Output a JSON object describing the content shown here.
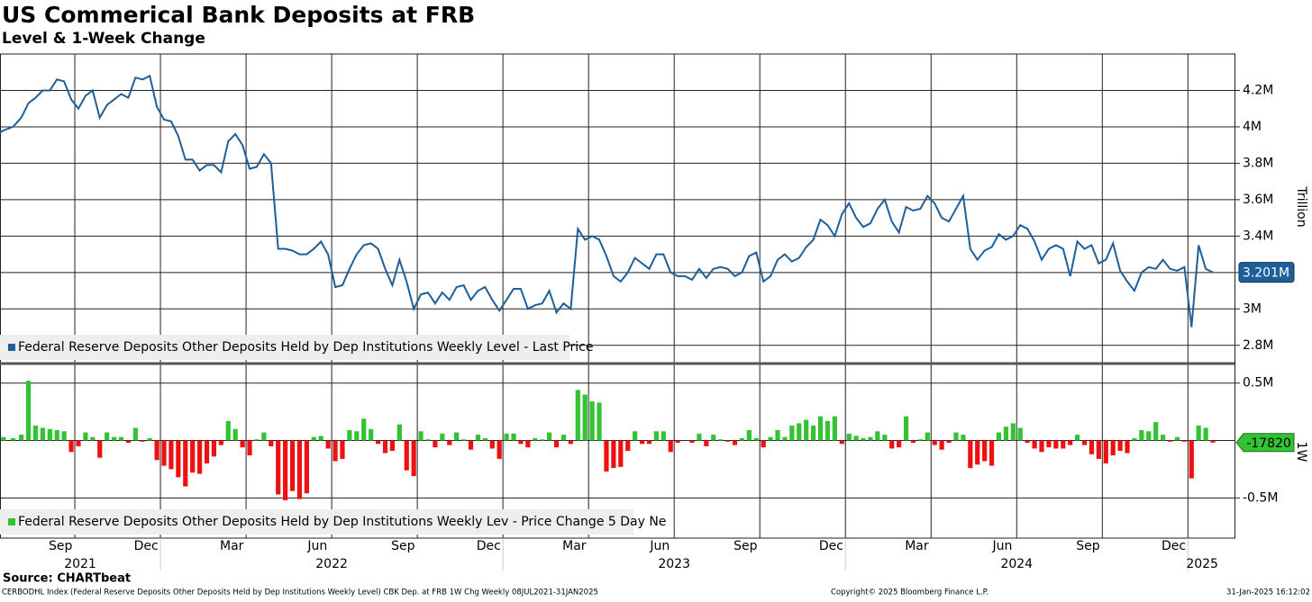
{
  "chart_data": {
    "type": "line",
    "title": "US Commerical Bank Deposits at FRB",
    "subtitle": "Level & 1-Week Change",
    "ylabel": "Trillion",
    "y2label": "1W",
    "source": "Source: CHARTbeat",
    "footer": "CERBODHL Index (Federal Reserve Deposits Other Deposits Held by Dep Institutions Weekly Level) CBK Dep. at FRB 1W Chg  Weekly 08JUL2021-31JAN2025",
    "copyright": "Copyright© 2025 Bloomberg Finance L.P.",
    "timestamp": "31-Jan-2025 16:12:02",
    "xlim": [
      "2021-07",
      "2025-01"
    ],
    "xticks": [
      {
        "value": "2021-09",
        "label": "Sep"
      },
      {
        "value": "2021-12",
        "label": "Dec"
      },
      {
        "value": "2022-03",
        "label": "Mar"
      },
      {
        "value": "2022-06",
        "label": "Jun"
      },
      {
        "value": "2022-09",
        "label": "Sep"
      },
      {
        "value": "2022-12",
        "label": "Dec"
      },
      {
        "value": "2023-03",
        "label": "Mar"
      },
      {
        "value": "2023-06",
        "label": "Jun"
      },
      {
        "value": "2023-09",
        "label": "Sep"
      },
      {
        "value": "2023-12",
        "label": "Dec"
      },
      {
        "value": "2024-03",
        "label": "Mar"
      },
      {
        "value": "2024-06",
        "label": "Jun"
      },
      {
        "value": "2024-09",
        "label": "Sep"
      },
      {
        "value": "2024-12",
        "label": "Dec"
      }
    ],
    "years": [
      2021,
      2022,
      2023,
      2024,
      2025
    ],
    "ylim": [
      2.7,
      4.4
    ],
    "yticks": [
      {
        "value": 2.8,
        "label": "2.8M"
      },
      {
        "value": 3,
        "label": "3M"
      },
      {
        "value": 3.2,
        "label": "3.2M"
      },
      {
        "value": 3.4,
        "label": "3.4M"
      },
      {
        "value": 3.6,
        "label": "3.6M"
      },
      {
        "value": 3.8,
        "label": "3.8M"
      },
      {
        "value": 4,
        "label": "4M"
      },
      {
        "value": 4.2,
        "label": "4.2M"
      }
    ],
    "y2lim": [
      -0.85,
      0.67
    ],
    "y2ticks": [
      {
        "value": -0.5,
        "label": "-0.5M"
      },
      {
        "value": 0.5,
        "label": "0.5M"
      }
    ],
    "grid": true,
    "x": [
      "2021-07",
      "2021-07",
      "2021-07",
      "2021-08",
      "2021-08",
      "2021-08",
      "2021-08",
      "2021-09",
      "2021-09",
      "2021-09",
      "2021-09",
      "2021-10",
      "2021-10",
      "2021-10",
      "2021-10",
      "2021-11",
      "2021-11",
      "2021-11",
      "2021-11",
      "2021-12",
      "2021-12",
      "2021-12",
      "2021-12",
      "2022-01",
      "2022-01",
      "2022-01",
      "2022-01",
      "2022-02",
      "2022-02",
      "2022-02",
      "2022-02",
      "2022-03",
      "2022-03",
      "2022-03",
      "2022-03",
      "2022-04",
      "2022-04",
      "2022-04",
      "2022-04",
      "2022-05",
      "2022-05",
      "2022-05",
      "2022-05",
      "2022-06",
      "2022-06",
      "2022-06",
      "2022-06",
      "2022-07",
      "2022-07",
      "2022-07",
      "2022-07",
      "2022-08",
      "2022-08",
      "2022-08",
      "2022-08",
      "2022-09",
      "2022-09",
      "2022-09",
      "2022-09",
      "2022-10",
      "2022-10",
      "2022-10",
      "2022-10",
      "2022-11",
      "2022-11",
      "2022-11",
      "2022-11",
      "2022-12",
      "2022-12",
      "2022-12",
      "2022-12",
      "2023-01",
      "2023-01",
      "2023-01",
      "2023-01",
      "2023-02",
      "2023-02",
      "2023-02",
      "2023-02",
      "2023-03",
      "2023-03",
      "2023-03",
      "2023-03",
      "2023-04",
      "2023-04",
      "2023-04",
      "2023-04",
      "2023-05",
      "2023-05",
      "2023-05",
      "2023-05",
      "2023-06",
      "2023-06",
      "2023-06",
      "2023-06",
      "2023-07",
      "2023-07",
      "2023-07",
      "2023-07",
      "2023-08",
      "2023-08",
      "2023-08",
      "2023-08",
      "2023-09",
      "2023-09",
      "2023-09",
      "2023-09",
      "2023-10",
      "2023-10",
      "2023-10",
      "2023-10",
      "2023-11",
      "2023-11",
      "2023-11",
      "2023-11",
      "2023-12",
      "2023-12",
      "2023-12",
      "2023-12",
      "2024-01",
      "2024-01",
      "2024-01",
      "2024-01",
      "2024-02",
      "2024-02",
      "2024-02",
      "2024-02",
      "2024-03",
      "2024-03",
      "2024-03",
      "2024-03",
      "2024-04",
      "2024-04",
      "2024-04",
      "2024-04",
      "2024-05",
      "2024-05",
      "2024-05",
      "2024-05",
      "2024-06",
      "2024-06",
      "2024-06",
      "2024-06",
      "2024-07",
      "2024-07",
      "2024-07",
      "2024-07",
      "2024-08",
      "2024-08",
      "2024-08",
      "2024-08",
      "2024-09",
      "2024-09",
      "2024-09",
      "2024-09",
      "2024-10",
      "2024-10",
      "2024-10",
      "2024-10",
      "2024-11",
      "2024-11",
      "2024-11",
      "2024-11",
      "2024-12",
      "2024-12",
      "2024-12",
      "2024-12",
      "2025-01",
      "2025-01",
      "2025-01",
      "2025-01"
    ],
    "series": [
      {
        "name": "Federal Reserve Deposits Other Deposits Held by Dep Institutions Weekly Level - Last Price",
        "type": "line",
        "axis": "y",
        "color": "#1f5f99",
        "last_value_label": "3.201M",
        "values": [
          3.95,
          3.98,
          4.0,
          4.05,
          4.13,
          4.16,
          4.2,
          4.2,
          4.26,
          4.25,
          4.15,
          4.1,
          4.17,
          4.2,
          4.05,
          4.12,
          4.15,
          4.18,
          4.16,
          4.27,
          4.26,
          4.28,
          4.11,
          4.04,
          4.03,
          3.95,
          3.82,
          3.82,
          3.76,
          3.79,
          3.79,
          3.75,
          3.92,
          3.96,
          3.9,
          3.77,
          3.78,
          3.85,
          3.8,
          3.33,
          3.33,
          3.32,
          3.3,
          3.3,
          3.33,
          3.37,
          3.3,
          3.12,
          3.13,
          3.22,
          3.3,
          3.35,
          3.36,
          3.33,
          3.22,
          3.13,
          3.27,
          3.15,
          3.0,
          3.08,
          3.09,
          3.03,
          3.09,
          3.05,
          3.12,
          3.13,
          3.05,
          3.1,
          3.12,
          3.05,
          2.99,
          3.05,
          3.11,
          3.11,
          3.0,
          3.02,
          3.03,
          3.1,
          2.98,
          3.03,
          3.0,
          3.44,
          3.38,
          3.4,
          3.38,
          3.29,
          3.18,
          3.15,
          3.2,
          3.28,
          3.25,
          3.22,
          3.3,
          3.3,
          3.2,
          3.18,
          3.18,
          3.16,
          3.22,
          3.17,
          3.22,
          3.23,
          3.22,
          3.18,
          3.2,
          3.29,
          3.31,
          3.15,
          3.18,
          3.27,
          3.3,
          3.26,
          3.28,
          3.34,
          3.38,
          3.49,
          3.46,
          3.4,
          3.52,
          3.58,
          3.5,
          3.45,
          3.47,
          3.55,
          3.6,
          3.48,
          3.42,
          3.56,
          3.54,
          3.55,
          3.62,
          3.58,
          3.5,
          3.48,
          3.55,
          3.62,
          3.33,
          3.27,
          3.32,
          3.34,
          3.41,
          3.38,
          3.4,
          3.46,
          3.44,
          3.37,
          3.27,
          3.33,
          3.35,
          3.33,
          3.18,
          3.37,
          3.33,
          3.35,
          3.25,
          3.27,
          3.36,
          3.21,
          3.15,
          3.1,
          3.2,
          3.23,
          3.22,
          3.27,
          3.22,
          3.21,
          3.23,
          2.9,
          3.35,
          3.22,
          3.201
        ]
      },
      {
        "name": "Federal Reserve Deposits Other Deposits Held by Dep Institutions Weekly Lev - Price Change 5 Day Ne",
        "type": "bar",
        "axis": "y2",
        "color": "#33c233",
        "negative_color": "#ee1111",
        "last_value_label": "-17820",
        "values": [
          0.02,
          0.03,
          0.02,
          0.05,
          0.52,
          0.13,
          0.11,
          0.1,
          0.09,
          0.08,
          -0.1,
          -0.05,
          0.07,
          0.03,
          -0.15,
          0.07,
          0.03,
          0.03,
          -0.02,
          0.11,
          -0.01,
          0.02,
          -0.17,
          -0.22,
          -0.25,
          -0.32,
          -0.4,
          -0.28,
          -0.29,
          -0.2,
          -0.14,
          -0.04,
          0.17,
          0.1,
          -0.06,
          -0.13,
          0.01,
          0.07,
          -0.05,
          -0.47,
          -0.52,
          -0.44,
          -0.51,
          -0.46,
          0.03,
          0.04,
          -0.07,
          -0.18,
          -0.16,
          0.09,
          0.08,
          0.19,
          0.1,
          -0.03,
          -0.11,
          -0.09,
          0.14,
          -0.26,
          -0.31,
          0.08,
          0.01,
          -0.06,
          0.06,
          -0.04,
          0.07,
          0.01,
          -0.08,
          0.05,
          0.02,
          -0.07,
          -0.16,
          0.06,
          0.06,
          -0.03,
          -0.06,
          0.02,
          0.01,
          0.07,
          -0.06,
          0.05,
          -0.03,
          0.44,
          0.4,
          0.34,
          0.33,
          -0.27,
          -0.24,
          -0.23,
          -0.09,
          0.08,
          -0.03,
          -0.03,
          0.08,
          0.08,
          -0.1,
          -0.02,
          0.0,
          -0.02,
          0.06,
          -0.05,
          0.05,
          0.01,
          -0.01,
          -0.04,
          0.02,
          0.09,
          0.02,
          -0.06,
          0.03,
          0.09,
          0.03,
          0.13,
          0.15,
          0.18,
          0.13,
          0.21,
          0.17,
          0.21,
          -0.03,
          0.06,
          0.04,
          0.02,
          0.03,
          0.08,
          0.05,
          -0.07,
          -0.06,
          0.21,
          -0.02,
          0.01,
          0.07,
          -0.04,
          -0.08,
          -0.02,
          0.07,
          0.05,
          -0.24,
          -0.21,
          -0.18,
          -0.22,
          0.07,
          0.12,
          0.15,
          0.11,
          -0.02,
          -0.07,
          -0.1,
          -0.06,
          -0.07,
          -0.07,
          -0.04,
          0.05,
          -0.04,
          -0.12,
          -0.16,
          -0.2,
          -0.13,
          -0.09,
          -0.11,
          0.02,
          0.09,
          0.08,
          0.16,
          0.05,
          -0.01,
          0.03,
          -0.01,
          -0.33,
          0.13,
          0.11,
          -0.01782
        ]
      }
    ]
  }
}
